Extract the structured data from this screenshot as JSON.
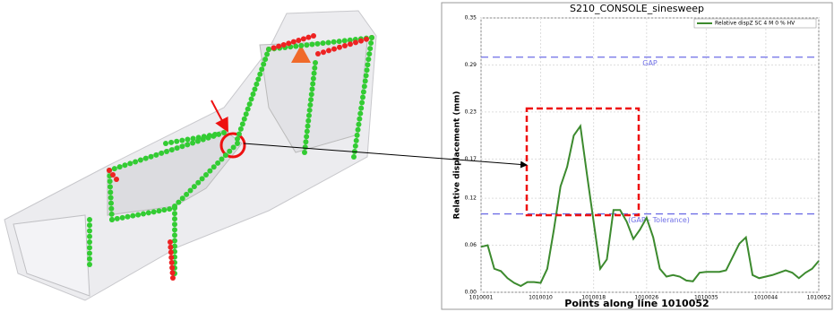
{
  "chart_data": {
    "type": "line",
    "title": "S210_CONSOLE_sinesweep",
    "x_label": "Points along line 1010052",
    "y_label": "Relative displacement (mm)",
    "x": [
      1010001,
      1010002,
      1010003,
      1010004,
      1010005,
      1010006,
      1010007,
      1010008,
      1010009,
      1010010,
      1010011,
      1010012,
      1010013,
      1010014,
      1010015,
      1010016,
      1010017,
      1010018,
      1010019,
      1010020,
      1010021,
      1010022,
      1010023,
      1010024,
      1010025,
      1010026,
      1010027,
      1010028,
      1010029,
      1010030,
      1010031,
      1010032,
      1010033,
      1010034,
      1010035,
      1010036,
      1010037,
      1010038,
      1010039,
      1010040,
      1010041,
      1010042,
      1010043,
      1010044,
      1010045,
      1010046,
      1010047,
      1010048,
      1010049,
      1010050,
      1010051,
      1010052
    ],
    "series": [
      {
        "name": "Relative dispZ SC 4 M 0 % HV",
        "color": "#3c8a2e",
        "values": [
          0.058,
          0.06,
          0.03,
          0.027,
          0.018,
          0.012,
          0.008,
          0.013,
          0.013,
          0.012,
          0.03,
          0.08,
          0.135,
          0.16,
          0.2,
          0.212,
          0.15,
          0.09,
          0.03,
          0.042,
          0.105,
          0.105,
          0.09,
          0.068,
          0.08,
          0.095,
          0.07,
          0.03,
          0.02,
          0.022,
          0.02,
          0.015,
          0.014,
          0.025,
          0.026,
          0.026,
          0.026,
          0.028,
          0.045,
          0.062,
          0.07,
          0.022,
          0.018,
          0.02,
          0.022,
          0.025,
          0.028,
          0.025,
          0.018,
          0.025,
          0.03,
          0.04
        ]
      }
    ],
    "xlim": [
      1010001,
      1010052
    ],
    "xticks": [
      1010001,
      1010010,
      1010018,
      1010026,
      1010035,
      1010044,
      1010052
    ],
    "ylim": [
      0,
      0.35
    ],
    "yticks": [
      {
        "value": 0,
        "label": "0.00"
      },
      0.06,
      0.12,
      0.17,
      0.23,
      0.29,
      0.35
    ],
    "reference_lines": [
      {
        "value": 0.3,
        "label": "GAP",
        "color": "#6f6fe6"
      },
      {
        "value": 0.1,
        "label": "(GAP - Tolerance)",
        "color": "#6f6fe6"
      }
    ],
    "grid": true,
    "legend": "upper right"
  }
}
